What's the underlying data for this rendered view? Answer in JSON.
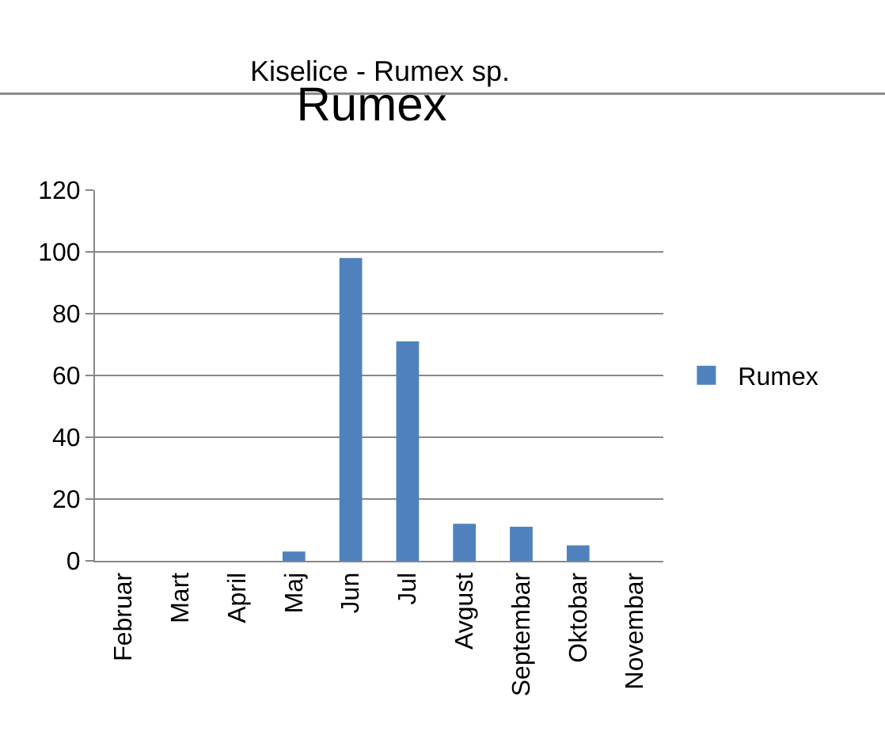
{
  "chart_data": {
    "type": "bar",
    "title": "Rumex",
    "annotations": [
      "Kiselice - Rumex sp."
    ],
    "categories": [
      "Februar",
      "Mart",
      "April",
      "Maj",
      "Jun",
      "Jul",
      "Avgust",
      "Septembar",
      "Oktobar",
      "Novembar"
    ],
    "series": [
      {
        "name": "Rumex",
        "color": "#4f81bd",
        "values": [
          0,
          0,
          0,
          3,
          98,
          71,
          12,
          11,
          5,
          0
        ]
      }
    ],
    "ylim": [
      0,
      120
    ],
    "yticks": [
      0,
      20,
      40,
      60,
      80,
      100,
      120
    ],
    "grid": "y",
    "legend": "right"
  }
}
